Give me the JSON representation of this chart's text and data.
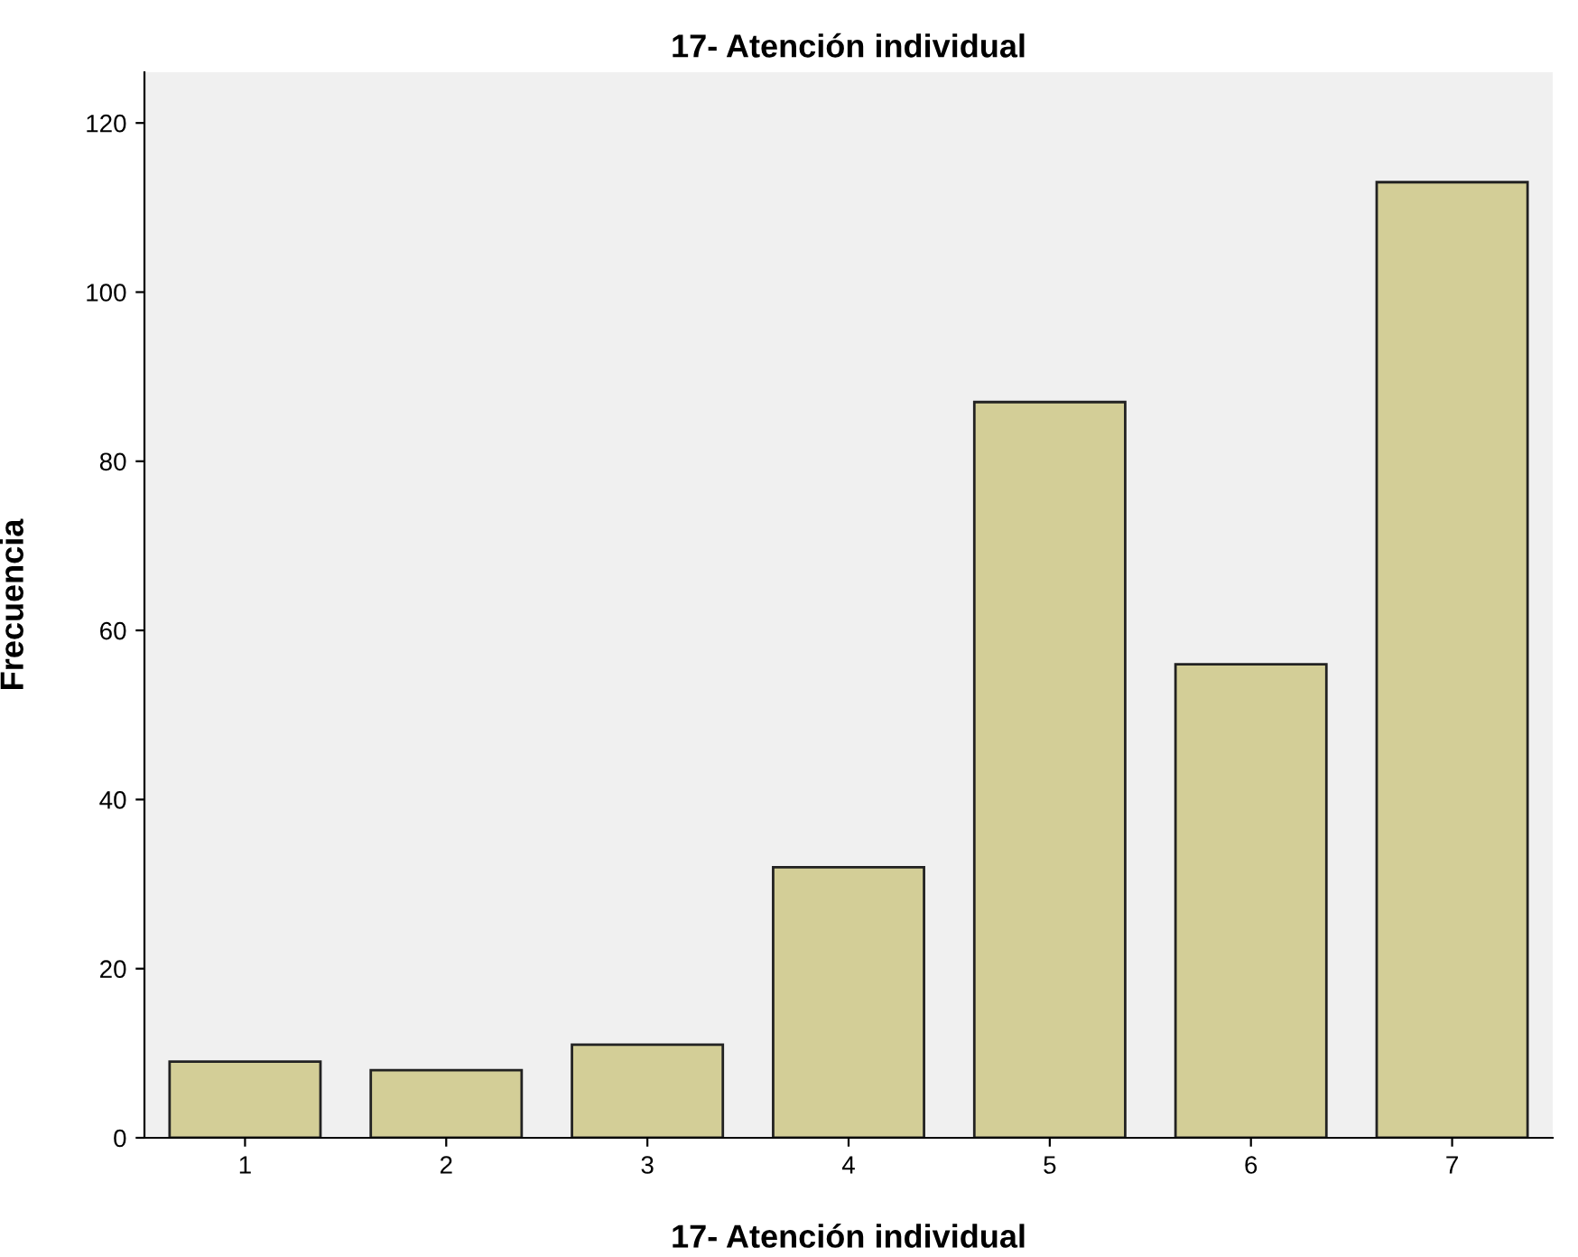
{
  "chart_data": {
    "type": "bar",
    "title": "17- Atención individual",
    "xlabel": "17- Atención individual",
    "ylabel": "Frecuencia",
    "categories": [
      "1",
      "2",
      "3",
      "4",
      "5",
      "6",
      "7"
    ],
    "values": [
      9,
      8,
      11,
      32,
      87,
      56,
      113
    ],
    "color": "#d3ce97",
    "ylim": [
      0,
      126
    ],
    "yticks": [
      0,
      20,
      40,
      60,
      80,
      100,
      120
    ],
    "grid": false,
    "legend": false
  }
}
